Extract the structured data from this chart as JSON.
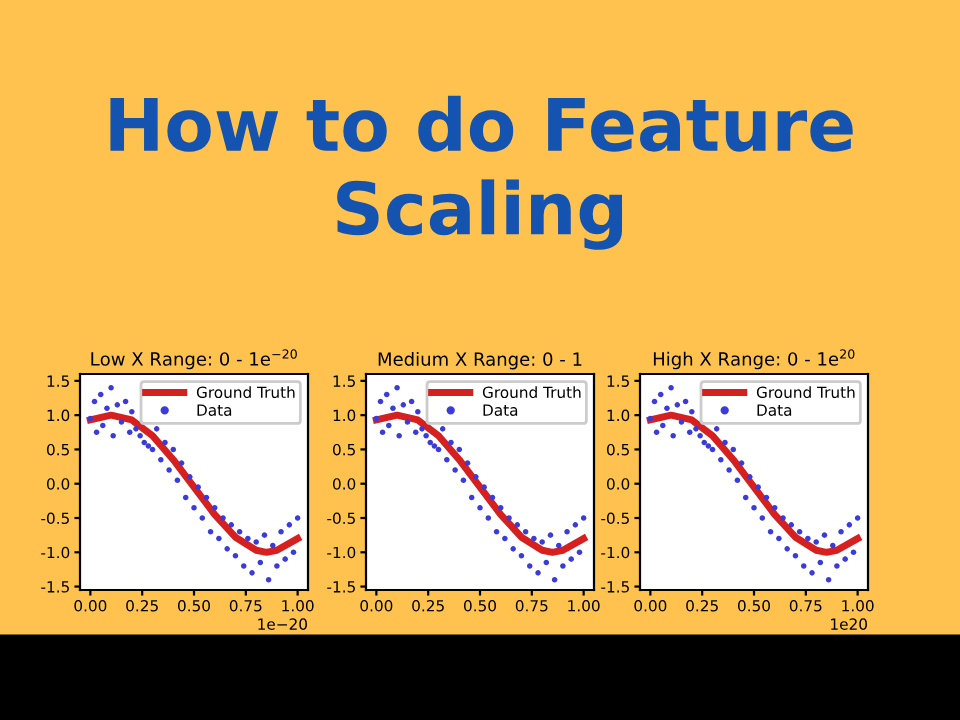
{
  "chart_data": [
    {
      "type": "scatter",
      "title": "Low X Range: 0 - 1e$^{−20}$",
      "annotations": [
        "How to do Feature\nScaling",
        "1e−20"
      ],
      "legend": "top right",
      "xlim": [
        -0.05,
        1.05
      ],
      "xticks": [
        {
          "value": 0,
          "label": "0.00"
        },
        {
          "value": 0.25,
          "label": "0.25"
        },
        {
          "value": 0.5,
          "label": "0.50"
        },
        {
          "value": 0.75,
          "label": "0.75"
        },
        {
          "value": 1,
          "label": "1.00"
        }
      ],
      "ylim": [
        -1.55,
        1.6
      ],
      "yticks": [
        -1.5,
        {
          "value": -1,
          "label": "-1.0"
        },
        -0.5,
        {
          "value": 0,
          "label": "0.0"
        },
        0.5,
        {
          "value": 1,
          "label": "1.0"
        },
        1.5
      ],
      "series": [
        {
          "name": "Ground Truth",
          "type": "line",
          "color": "#d62020",
          "marker": "none",
          "x": [
            0,
            0.1,
            0.2,
            0.3,
            0.4,
            0.5,
            0.6,
            0.7,
            0.8,
            0.85,
            0.9,
            1
          ],
          "values": [
            0.93,
            1.0,
            0.93,
            0.7,
            0.35,
            -0.05,
            -0.45,
            -0.78,
            -0.97,
            -1.0,
            -0.97,
            -0.8
          ]
        },
        {
          "name": "Data",
          "type": "scatter",
          "color": "#3b3bdc",
          "marker": "circle",
          "x": [
            0,
            0.02,
            0.03,
            0.05,
            0.06,
            0.08,
            0.1,
            0.11,
            0.13,
            0.15,
            0.17,
            0.19,
            0.2,
            0.22,
            0.24,
            0.26,
            0.28,
            0.3,
            0.32,
            0.34,
            0.36,
            0.38,
            0.4,
            0.42,
            0.44,
            0.46,
            0.48,
            0.5,
            0.52,
            0.54,
            0.56,
            0.58,
            0.6,
            0.62,
            0.64,
            0.66,
            0.68,
            0.7,
            0.72,
            0.74,
            0.76,
            0.78,
            0.8,
            0.82,
            0.84,
            0.86,
            0.88,
            0.9,
            0.92,
            0.94,
            0.96,
            0.98,
            1
          ],
          "values": [
            0.95,
            1.2,
            0.75,
            1.3,
            0.85,
            1.1,
            1.4,
            0.7,
            1.15,
            0.9,
            1.2,
            0.75,
            1.05,
            0.8,
            0.7,
            0.6,
            0.55,
            0.5,
            0.8,
            0.35,
            0.6,
            0.2,
            0.5,
            0.05,
            0.3,
            -0.2,
            0.1,
            -0.35,
            -0.05,
            -0.5,
            -0.2,
            -0.7,
            -0.35,
            -0.8,
            -0.5,
            -0.95,
            -0.6,
            -1.05,
            -0.7,
            -1.2,
            -0.8,
            -1.3,
            -0.85,
            -1.15,
            -0.75,
            -1.4,
            -0.9,
            -1.2,
            -0.7,
            -1.1,
            -0.6,
            -1.0,
            -0.5
          ]
        }
      ]
    },
    {
      "type": "scatter",
      "title": "Medium X Range: 0 - 1",
      "legend": "top right",
      "xlim": [
        -0.05,
        1.05
      ],
      "xticks": [
        {
          "value": 0,
          "label": "0.00"
        },
        {
          "value": 0.25,
          "label": "0.25"
        },
        {
          "value": 0.5,
          "label": "0.50"
        },
        {
          "value": 0.75,
          "label": "0.75"
        },
        {
          "value": 1,
          "label": "1.00"
        }
      ],
      "ylim": [
        -1.55,
        1.6
      ],
      "yticks": [
        -1.5,
        {
          "value": -1,
          "label": "-1.0"
        },
        -0.5,
        {
          "value": 0,
          "label": "0.0"
        },
        0.5,
        {
          "value": 1,
          "label": "1.0"
        },
        1.5
      ],
      "series": [
        {
          "name": "Ground Truth",
          "type": "line",
          "color": "#d62020",
          "marker": "none",
          "x": [
            0,
            0.1,
            0.2,
            0.3,
            0.4,
            0.5,
            0.6,
            0.7,
            0.8,
            0.85,
            0.9,
            1
          ],
          "values": [
            0.93,
            1.0,
            0.93,
            0.7,
            0.35,
            -0.05,
            -0.45,
            -0.78,
            -0.97,
            -1.0,
            -0.97,
            -0.8
          ]
        },
        {
          "name": "Data",
          "type": "scatter",
          "color": "#3b3bdc",
          "marker": "circle",
          "x": [
            0,
            0.02,
            0.03,
            0.05,
            0.06,
            0.08,
            0.1,
            0.11,
            0.13,
            0.15,
            0.17,
            0.19,
            0.2,
            0.22,
            0.24,
            0.26,
            0.28,
            0.3,
            0.32,
            0.34,
            0.36,
            0.38,
            0.4,
            0.42,
            0.44,
            0.46,
            0.48,
            0.5,
            0.52,
            0.54,
            0.56,
            0.58,
            0.6,
            0.62,
            0.64,
            0.66,
            0.68,
            0.7,
            0.72,
            0.74,
            0.76,
            0.78,
            0.8,
            0.82,
            0.84,
            0.86,
            0.88,
            0.9,
            0.92,
            0.94,
            0.96,
            0.98,
            1
          ],
          "values": [
            0.95,
            1.2,
            0.75,
            1.3,
            0.85,
            1.1,
            1.4,
            0.7,
            1.15,
            0.9,
            1.2,
            0.75,
            1.05,
            0.8,
            0.7,
            0.6,
            0.55,
            0.5,
            0.8,
            0.35,
            0.6,
            0.2,
            0.5,
            0.05,
            0.3,
            -0.2,
            0.1,
            -0.35,
            -0.05,
            -0.5,
            -0.2,
            -0.7,
            -0.35,
            -0.8,
            -0.5,
            -0.95,
            -0.6,
            -1.05,
            -0.7,
            -1.2,
            -0.8,
            -1.3,
            -0.85,
            -1.15,
            -0.75,
            -1.4,
            -0.9,
            -1.2,
            -0.7,
            -1.1,
            -0.6,
            -1.0,
            -0.5
          ]
        }
      ]
    },
    {
      "type": "scatter",
      "title": "High X Range: 0 - 1e$^{20}$",
      "annotations": [
        "1e20"
      ],
      "legend": "top right",
      "xlim": [
        -0.05,
        1.05
      ],
      "xticks": [
        {
          "value": 0,
          "label": "0.00"
        },
        {
          "value": 0.25,
          "label": "0.25"
        },
        {
          "value": 0.5,
          "label": "0.50"
        },
        {
          "value": 0.75,
          "label": "0.75"
        },
        {
          "value": 1,
          "label": "1.00"
        }
      ],
      "ylim": [
        -1.55,
        1.6
      ],
      "yticks": [
        -1.5,
        {
          "value": -1,
          "label": "-1.0"
        },
        -0.5,
        {
          "value": 0,
          "label": "0.0"
        },
        0.5,
        {
          "value": 1,
          "label": "1.0"
        },
        1.5
      ],
      "series": [
        {
          "name": "Ground Truth",
          "type": "line",
          "color": "#d62020",
          "marker": "none",
          "x": [
            0,
            0.1,
            0.2,
            0.3,
            0.4,
            0.5,
            0.6,
            0.7,
            0.8,
            0.85,
            0.9,
            1
          ],
          "values": [
            0.93,
            1.0,
            0.93,
            0.7,
            0.35,
            -0.05,
            -0.45,
            -0.78,
            -0.97,
            -1.0,
            -0.97,
            -0.8
          ]
        },
        {
          "name": "Data",
          "type": "scatter",
          "color": "#3b3bdc",
          "marker": "circle",
          "x": [
            0,
            0.02,
            0.03,
            0.05,
            0.06,
            0.08,
            0.1,
            0.11,
            0.13,
            0.15,
            0.17,
            0.19,
            0.2,
            0.22,
            0.24,
            0.26,
            0.28,
            0.3,
            0.32,
            0.34,
            0.36,
            0.38,
            0.4,
            0.42,
            0.44,
            0.46,
            0.48,
            0.5,
            0.52,
            0.54,
            0.56,
            0.58,
            0.6,
            0.62,
            0.64,
            0.66,
            0.68,
            0.7,
            0.72,
            0.74,
            0.76,
            0.78,
            0.8,
            0.82,
            0.84,
            0.86,
            0.88,
            0.9,
            0.92,
            0.94,
            0.96,
            0.98,
            1
          ],
          "values": [
            0.95,
            1.2,
            0.75,
            1.3,
            0.85,
            1.1,
            1.4,
            0.7,
            1.15,
            0.9,
            1.2,
            0.75,
            1.05,
            0.8,
            0.7,
            0.6,
            0.55,
            0.5,
            0.8,
            0.35,
            0.6,
            0.2,
            0.5,
            0.05,
            0.3,
            -0.2,
            0.1,
            -0.35,
            -0.05,
            -0.5,
            -0.2,
            -0.7,
            -0.35,
            -0.8,
            -0.5,
            -0.95,
            -0.6,
            -1.05,
            -0.7,
            -1.2,
            -0.8,
            -1.3,
            -0.85,
            -1.15,
            -0.75,
            -1.4,
            -0.9,
            -1.2,
            -0.7,
            -1.1,
            -0.6,
            -1.0,
            -0.5
          ]
        }
      ]
    }
  ]
}
